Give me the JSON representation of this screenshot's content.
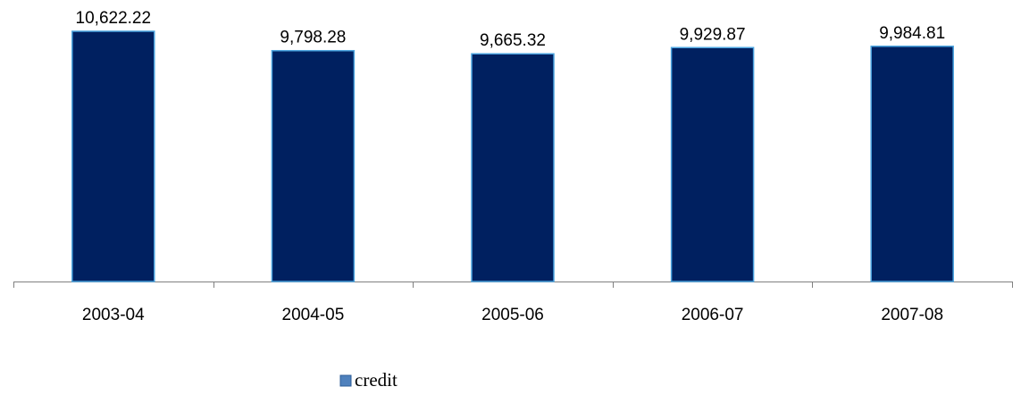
{
  "chart_data": {
    "type": "bar",
    "categories": [
      "2003-04",
      "2004-05",
      "2005-06",
      "2006-07",
      "2007-08"
    ],
    "series": [
      {
        "name": "credit",
        "color": "#002060",
        "values": [
          10622.22,
          9798.28,
          9665.32,
          9929.87,
          9984.81
        ],
        "value_labels": [
          "10,622.22",
          "9,798.28",
          "9,665.32",
          "9,929.87",
          "9,984.81"
        ]
      }
    ]
  }
}
